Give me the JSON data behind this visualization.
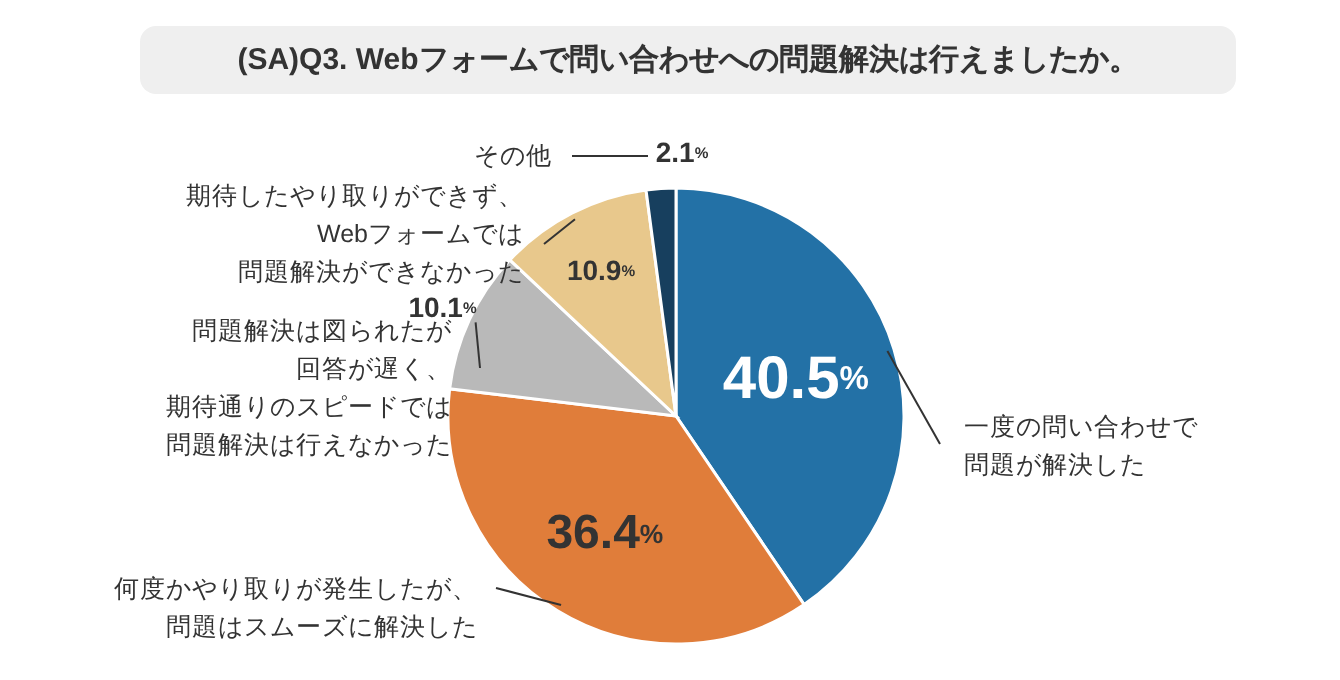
{
  "chart_data": {
    "type": "pie",
    "title": "(SA)Q3. Webフォームで問い合わせへの問題解決は行えましたか。",
    "categories": [
      "一度の問い合わせで問題が解決した",
      "何度かやり取りが発生したが、問題はスムーズに解決した",
      "問題解決は図られたが回答が遅く、期待通りのスピードでは問題解決は行えなかった",
      "期待したやり取りができず、Webフォームでは問題解決ができなかった",
      "その他"
    ],
    "values": [
      40.5,
      36.4,
      10.1,
      10.9,
      2.1
    ],
    "colors": [
      "#2371a6",
      "#e07d3a",
      "#b9b9b9",
      "#e8c88c",
      "#173f5e"
    ],
    "value_labels": [
      "40.5%",
      "36.4%",
      "10.1%",
      "10.9%",
      "2.1%"
    ]
  }
}
